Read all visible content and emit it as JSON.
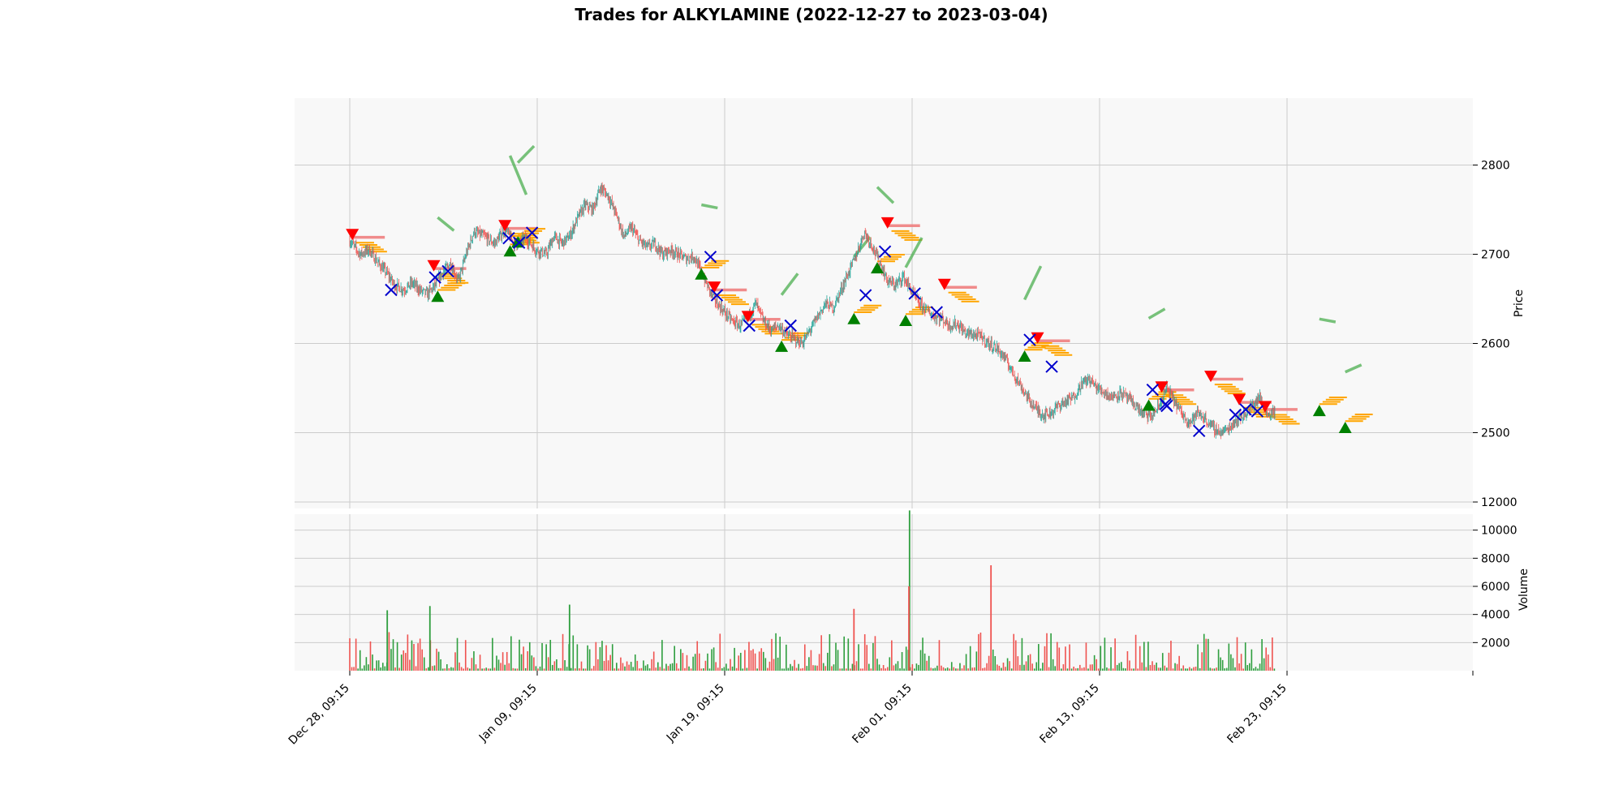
{
  "title": "Trades for ALKYLAMINE (2022-12-27 to 2023-03-04)",
  "chart_data": [
    {
      "type": "candlestick",
      "title": "Trades for ALKYLAMINE (2022-12-27 to 2023-03-04)",
      "ylabel": "Price",
      "ylim": [
        2415,
        2875
      ],
      "yticks": [
        2500,
        2600,
        2700,
        2800
      ],
      "grid": true,
      "xticks": [
        "Dec 28, 09:15",
        "Jan 09, 09:15",
        "Jan 19, 09:15",
        "Feb 01, 09:15",
        "Feb 13, 09:15",
        "Feb 23, 09:15"
      ],
      "colors": {
        "up": "#26a69a",
        "down": "#ef5350",
        "buy": "#008000",
        "sell": "#ff0000",
        "exit": "#0000cd",
        "entry_level": "#ffa500",
        "bar_up": "#2e9e3e",
        "bar_down": "#ef5350"
      },
      "close_path": [
        [
          0.0,
          2715
        ],
        [
          0.8,
          2700
        ],
        [
          1.5,
          2705
        ],
        [
          2.2,
          2690
        ],
        [
          2.8,
          2680
        ],
        [
          3.5,
          2665
        ],
        [
          4.2,
          2660
        ],
        [
          4.8,
          2668
        ],
        [
          5.4,
          2660
        ],
        [
          6.0,
          2655
        ],
        [
          6.6,
          2665
        ],
        [
          7.2,
          2680
        ],
        [
          7.8,
          2690
        ],
        [
          8.4,
          2670
        ],
        [
          9.0,
          2700
        ],
        [
          9.6,
          2725
        ],
        [
          10.4,
          2720
        ],
        [
          11.2,
          2712
        ],
        [
          12.0,
          2728
        ],
        [
          12.8,
          2710
        ],
        [
          13.6,
          2718
        ],
        [
          14.4,
          2705
        ],
        [
          15.2,
          2700
        ],
        [
          15.8,
          2720
        ],
        [
          16.4,
          2712
        ],
        [
          17.0,
          2720
        ],
        [
          17.6,
          2740
        ],
        [
          18.2,
          2755
        ],
        [
          18.8,
          2750
        ],
        [
          19.4,
          2775
        ],
        [
          20.0,
          2765
        ],
        [
          20.6,
          2745
        ],
        [
          21.2,
          2720
        ],
        [
          21.8,
          2730
        ],
        [
          22.4,
          2715
        ],
        [
          23.0,
          2708
        ],
        [
          23.6,
          2712
        ],
        [
          24.2,
          2700
        ],
        [
          24.8,
          2705
        ],
        [
          25.4,
          2700
        ],
        [
          26.0,
          2695
        ],
        [
          26.6,
          2698
        ],
        [
          27.2,
          2680
        ],
        [
          27.8,
          2660
        ],
        [
          28.4,
          2645
        ],
        [
          29.0,
          2635
        ],
        [
          29.6,
          2625
        ],
        [
          30.2,
          2620
        ],
        [
          30.8,
          2630
        ],
        [
          31.4,
          2645
        ],
        [
          32.0,
          2625
        ],
        [
          32.6,
          2615
        ],
        [
          33.2,
          2620
        ],
        [
          33.8,
          2610
        ],
        [
          34.4,
          2605
        ],
        [
          35.0,
          2600
        ],
        [
          35.6,
          2615
        ],
        [
          36.2,
          2630
        ],
        [
          36.8,
          2645
        ],
        [
          37.4,
          2640
        ],
        [
          38.0,
          2660
        ],
        [
          38.6,
          2680
        ],
        [
          39.2,
          2700
        ],
        [
          39.8,
          2725
        ],
        [
          40.4,
          2710
        ],
        [
          41.0,
          2690
        ],
        [
          41.6,
          2670
        ],
        [
          42.2,
          2665
        ],
        [
          42.8,
          2675
        ],
        [
          43.4,
          2660
        ],
        [
          44.0,
          2645
        ],
        [
          44.6,
          2638
        ],
        [
          45.2,
          2630
        ],
        [
          45.8,
          2628
        ],
        [
          46.4,
          2620
        ],
        [
          47.0,
          2622
        ],
        [
          47.6,
          2612
        ],
        [
          48.2,
          2610
        ],
        [
          48.8,
          2608
        ],
        [
          49.4,
          2600
        ],
        [
          50.0,
          2595
        ],
        [
          50.6,
          2585
        ],
        [
          51.2,
          2570
        ],
        [
          51.8,
          2555
        ],
        [
          52.4,
          2540
        ],
        [
          53.0,
          2528
        ],
        [
          53.6,
          2520
        ],
        [
          54.2,
          2522
        ],
        [
          54.8,
          2530
        ],
        [
          55.4,
          2535
        ],
        [
          56.0,
          2540
        ],
        [
          56.6,
          2555
        ],
        [
          57.2,
          2560
        ],
        [
          57.8,
          2550
        ],
        [
          58.4,
          2545
        ],
        [
          59.0,
          2540
        ],
        [
          59.6,
          2545
        ],
        [
          60.2,
          2538
        ],
        [
          60.8,
          2530
        ],
        [
          61.4,
          2520
        ],
        [
          62.0,
          2518
        ],
        [
          62.6,
          2530
        ],
        [
          63.2,
          2550
        ],
        [
          63.8,
          2535
        ],
        [
          64.4,
          2520
        ],
        [
          65.0,
          2512
        ],
        [
          65.6,
          2522
        ],
        [
          66.2,
          2515
        ],
        [
          66.8,
          2505
        ],
        [
          67.4,
          2500
        ],
        [
          68.0,
          2505
        ],
        [
          68.6,
          2515
        ],
        [
          69.2,
          2520
        ],
        [
          69.8,
          2530
        ],
        [
          70.4,
          2540
        ],
        [
          71.0,
          2520
        ],
        [
          71.6,
          2525
        ]
      ],
      "trades": {
        "buy": [
          [
            12.4,
            2703
          ],
          [
            13.0,
            2713
          ],
          [
            27.2,
            2677
          ],
          [
            33.4,
            2596
          ],
          [
            39.0,
            2627
          ],
          [
            40.8,
            2684
          ],
          [
            43.0,
            2625
          ],
          [
            52.2,
            2585
          ],
          [
            61.8,
            2530
          ],
          [
            75.0,
            2524
          ],
          [
            6.8,
            2652
          ],
          [
            77.0,
            2505
          ]
        ],
        "sell": [
          [
            0.2,
            2723
          ],
          [
            6.5,
            2688
          ],
          [
            12.0,
            2733
          ],
          [
            28.2,
            2664
          ],
          [
            30.8,
            2631
          ],
          [
            41.6,
            2736
          ],
          [
            46.0,
            2667
          ],
          [
            53.2,
            2607
          ],
          [
            62.8,
            2552
          ],
          [
            66.6,
            2564
          ],
          [
            68.8,
            2538
          ],
          [
            70.8,
            2530
          ]
        ],
        "exit": [
          [
            3.2,
            2660
          ],
          [
            6.6,
            2674
          ],
          [
            7.6,
            2681
          ],
          [
            12.3,
            2718
          ],
          [
            13.1,
            2713
          ],
          [
            14.1,
            2724
          ],
          [
            27.9,
            2697
          ],
          [
            28.4,
            2654
          ],
          [
            30.9,
            2620
          ],
          [
            34.1,
            2620
          ],
          [
            39.9,
            2654
          ],
          [
            41.4,
            2703
          ],
          [
            43.7,
            2656
          ],
          [
            45.4,
            2635
          ],
          [
            52.6,
            2604
          ],
          [
            54.3,
            2574
          ],
          [
            62.1,
            2548
          ],
          [
            63.1,
            2532
          ],
          [
            63.2,
            2530
          ],
          [
            65.7,
            2502
          ],
          [
            68.5,
            2520
          ],
          [
            69.3,
            2526
          ],
          [
            70.2,
            2524
          ]
        ]
      }
    },
    {
      "type": "bar",
      "ylabel": "Volume",
      "ylim": [
        0,
        12000
      ],
      "yticks": [
        2000,
        4000,
        6000,
        8000,
        10000,
        12000
      ],
      "grid": true,
      "peaks": [
        {
          "x": 43.3,
          "value": 11400,
          "direction": "up"
        },
        {
          "x": 43.25,
          "value": 6000,
          "direction": "down"
        },
        {
          "x": 49.6,
          "value": 7500,
          "direction": "down"
        },
        {
          "x": 17.0,
          "value": 4700,
          "direction": "up"
        },
        {
          "x": 6.2,
          "value": 4600,
          "direction": "up"
        },
        {
          "x": 2.9,
          "value": 4300,
          "direction": "up"
        },
        {
          "x": 39.0,
          "value": 4400,
          "direction": "down"
        }
      ]
    }
  ]
}
